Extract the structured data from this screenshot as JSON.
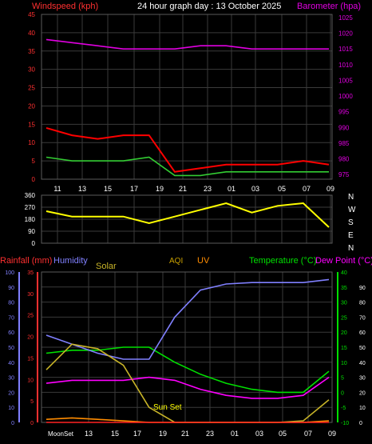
{
  "header": {
    "left_label": "Windspeed (kph)",
    "title": "24 hour graph day : 13 October 2025",
    "right_label": "Barometer (hpa)"
  },
  "colors": {
    "background": "#000000",
    "grid": "#3a3a3a",
    "wind_gust": "#ff0000",
    "wind_avg": "#33cc33",
    "barometer": "#e000e0",
    "wind_dir": "#ffff00",
    "rain": "#ff2222",
    "humidity": "#8080ff",
    "solar": "#c8b428",
    "aqi": "#c8a000",
    "uv": "#ff8c00",
    "temperature": "#00e000",
    "dewpoint": "#ff00ff",
    "tick_text": "#ffffff",
    "left_axis_red": "#ff3030",
    "humidity_axis": "#8080ff"
  },
  "hour_labels": [
    "11",
    "13",
    "15",
    "17",
    "19",
    "21",
    "23",
    "01",
    "03",
    "05",
    "07",
    "09"
  ],
  "bottom_hour_labels": [
    "13",
    "15",
    "17",
    "19",
    "21",
    "23",
    "01",
    "03",
    "05",
    "07",
    "09"
  ],
  "bottom_first_label": "MoonSet",
  "chart_data": [
    {
      "type": "line",
      "name": "wind_barometer",
      "x": [
        "11",
        "13",
        "15",
        "17",
        "19",
        "21",
        "23",
        "01",
        "03",
        "05",
        "07",
        "09"
      ],
      "left_axis": {
        "label": "Windspeed (kph)",
        "ticks": [
          0,
          5,
          10,
          15,
          20,
          25,
          30,
          35,
          40,
          45
        ],
        "range": [
          0,
          45
        ]
      },
      "right_axis": {
        "label": "Barometer (hpa)",
        "ticks": [
          975,
          980,
          985,
          990,
          995,
          1000,
          1005,
          1010,
          1015,
          1020,
          1025
        ],
        "range": [
          973.5,
          1026
        ]
      },
      "series": [
        {
          "name": "wind_gust",
          "values": [
            14,
            12,
            11,
            12,
            12,
            2,
            3,
            4,
            4,
            4,
            5,
            4
          ],
          "color": "#ff0000"
        },
        {
          "name": "wind_avg",
          "values": [
            6,
            5,
            5,
            5,
            6,
            1,
            1,
            2,
            2,
            2,
            2,
            2
          ],
          "color": "#33cc33"
        },
        {
          "name": "barometer",
          "values": [
            1018,
            1017,
            1016,
            1015,
            1015,
            1015,
            1016,
            1016,
            1015,
            1015,
            1015,
            1015
          ],
          "color": "#e000e0"
        }
      ]
    },
    {
      "type": "line",
      "name": "wind_direction",
      "x": [
        "11",
        "13",
        "15",
        "17",
        "19",
        "21",
        "23",
        "01",
        "03",
        "05",
        "07",
        "09"
      ],
      "left_axis": {
        "ticks": [
          0,
          90,
          180,
          270,
          360
        ],
        "range": [
          0,
          360
        ]
      },
      "right_labels": [
        "N",
        "W",
        "S",
        "E",
        "N"
      ],
      "series": [
        {
          "name": "wind_dir",
          "values": [
            240,
            200,
            200,
            200,
            150,
            200,
            250,
            300,
            230,
            280,
            300,
            120
          ],
          "color": "#ffff00"
        }
      ]
    },
    {
      "type": "line",
      "name": "rain_temp",
      "legend": [
        "Rainfall (mm)",
        "Humidity",
        "Solar",
        "AQI",
        "UV",
        "Temperature (°C)",
        "Dew Point (°C)"
      ],
      "x": [
        "11",
        "13",
        "15",
        "17",
        "19",
        "21",
        "23",
        "01",
        "03",
        "05",
        "07",
        "09"
      ],
      "axes": {
        "rain": {
          "ticks": [
            0,
            5,
            10,
            15,
            20,
            25,
            30,
            35
          ],
          "range": [
            0,
            35
          ]
        },
        "humidity": {
          "ticks": [
            0,
            10,
            20,
            30,
            40,
            50,
            60,
            70,
            80,
            90,
            100
          ],
          "range": [
            0,
            100
          ]
        },
        "temperature_right": {
          "ticks": [
            -10,
            -5,
            0,
            5,
            10,
            15,
            20,
            25,
            30,
            35,
            40
          ],
          "range": [
            -10,
            40
          ]
        },
        "right_percent": {
          "ticks": [
            0,
            10,
            20,
            30,
            40,
            50,
            60,
            70,
            80,
            90
          ],
          "range": [
            0,
            100
          ]
        }
      },
      "annotations": [
        {
          "text": "Sun Set"
        }
      ],
      "series": [
        {
          "name": "temperature",
          "values": [
            13,
            14,
            14,
            15,
            15,
            10,
            6,
            3,
            1,
            0,
            0,
            7
          ],
          "color": "#00e000"
        },
        {
          "name": "dewpoint",
          "values": [
            3,
            4,
            4,
            4,
            5,
            4,
            1,
            -1,
            -2,
            -2,
            -1,
            5
          ],
          "color": "#ff00ff"
        },
        {
          "name": "humidity",
          "values": [
            58,
            52,
            46,
            42,
            42,
            70,
            88,
            92,
            93,
            93,
            93,
            95
          ],
          "color": "#8080ff"
        },
        {
          "name": "solar",
          "values": [
            35,
            52,
            49,
            38,
            10,
            0,
            0,
            0,
            0,
            0,
            1,
            15
          ],
          "color": "#c8b428"
        },
        {
          "name": "uv",
          "values": [
            2,
            3,
            2,
            1,
            0,
            0,
            0,
            0,
            0,
            0,
            0,
            1
          ],
          "color": "#ff8c00"
        },
        {
          "name": "rain",
          "values": [
            0,
            0,
            0,
            0,
            0,
            0,
            0,
            0,
            0,
            0,
            0,
            0
          ],
          "color": "#ff2222"
        }
      ]
    }
  ]
}
